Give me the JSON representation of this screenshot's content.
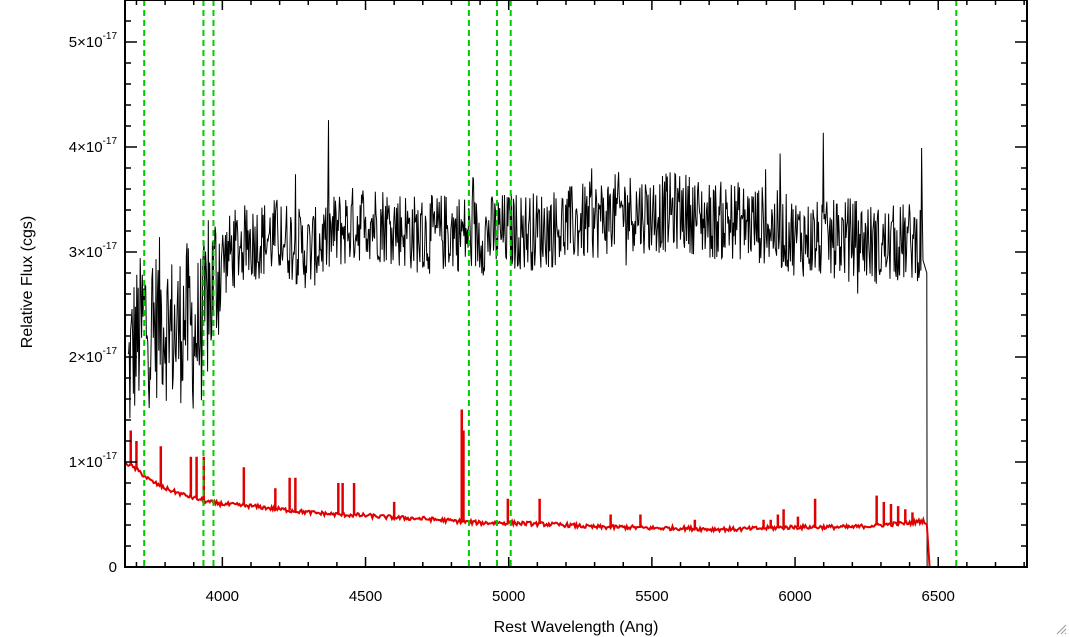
{
  "chart_data": {
    "type": "line",
    "title": "",
    "xlabel": "Rest Wavelength (Ang)",
    "ylabel": "Relative Flux (cgs)",
    "xlim": [
      3660,
      6810
    ],
    "ylim": [
      0,
      5.4e-17
    ],
    "x_ticks": [
      {
        "value": 4000,
        "label": "4000"
      },
      {
        "value": 4500,
        "label": "4500"
      },
      {
        "value": 5000,
        "label": "5000"
      },
      {
        "value": 5500,
        "label": "5500"
      },
      {
        "value": 6000,
        "label": "6000"
      },
      {
        "value": 6500,
        "label": "6500"
      }
    ],
    "y_ticks": [
      {
        "value": 0,
        "mant": "0",
        "exp": ""
      },
      {
        "value": 1e-17,
        "mant": "1×10",
        "exp": "-17"
      },
      {
        "value": 2e-17,
        "mant": "2×10",
        "exp": "-17"
      },
      {
        "value": 3e-17,
        "mant": "3×10",
        "exp": "-17"
      },
      {
        "value": 4e-17,
        "mant": "4×10",
        "exp": "-17"
      },
      {
        "value": 5e-17,
        "mant": "5×10",
        "exp": "-17"
      }
    ],
    "grid": false,
    "series": [
      {
        "color": "#000000",
        "style": "noisy observed spectrum",
        "x": [
          3670,
          3690,
          3710,
          3730,
          3750,
          3780,
          3810,
          3840,
          3870,
          3900,
          3930,
          3960,
          3990,
          4050,
          4100,
          4200,
          4300,
          4400,
          4500,
          4600,
          4700,
          4800,
          4900,
          5000,
          5100,
          5200,
          5300,
          5400,
          5500,
          5600,
          5700,
          5800,
          5900,
          6000,
          6100,
          6200,
          6300,
          6400,
          6450,
          6460,
          6461
        ],
        "values": [
          1.8e-17,
          2.1e-17,
          2.2e-17,
          2.4e-17,
          2.2e-17,
          2.4e-17,
          2.3e-17,
          2.2e-17,
          2.4e-17,
          2.2e-17,
          2.3e-17,
          2.6e-17,
          2.9e-17,
          3.05e-17,
          3.1e-17,
          3.15e-17,
          3e-17,
          3.2e-17,
          3.3e-17,
          3.25e-17,
          3.15e-17,
          3.2e-17,
          3.15e-17,
          3.2e-17,
          3.2e-17,
          3.25e-17,
          3.3e-17,
          3.4e-17,
          3.35e-17,
          3.4e-17,
          3.3e-17,
          3.3e-17,
          3.25e-17,
          3.15e-17,
          3.1e-17,
          3.15e-17,
          3.05e-17,
          3.1e-17,
          3.1e-17,
          2.8e-17,
          0
        ]
      },
      {
        "color": "#e00000",
        "style": "model spectrum with emission lines",
        "x": [
          3660,
          3700,
          3750,
          3800,
          3850,
          3900,
          3950,
          4000,
          4100,
          4200,
          4300,
          4400,
          4500,
          4600,
          4700,
          4800,
          4850,
          4900,
          5000,
          5100,
          5200,
          5300,
          5400,
          5500,
          5600,
          5700,
          5800,
          5900,
          6000,
          6100,
          6200,
          6300,
          6400,
          6450,
          6460,
          6470,
          6810
        ],
        "values": [
          1e-17,
          9.3e-18,
          8.2e-18,
          7.5e-18,
          7e-18,
          6.6e-18,
          6.2e-18,
          6e-18,
          5.8e-18,
          5.5e-18,
          5.2e-18,
          5e-18,
          4.9e-18,
          4.7e-18,
          4.6e-18,
          4.4e-18,
          4.3e-18,
          4.2e-18,
          4.2e-18,
          4.1e-18,
          4e-18,
          3.8e-18,
          3.8e-18,
          3.7e-18,
          3.7e-18,
          3.6e-18,
          3.6e-18,
          3.7e-18,
          3.8e-18,
          3.8e-18,
          3.8e-18,
          4e-18,
          4.2e-18,
          4.4e-18,
          4.1e-18,
          0,
          0
        ]
      }
    ],
    "emission_lines": [
      {
        "x": 3680,
        "height": 1.3e-17
      },
      {
        "x": 3700,
        "height": 1.2e-17
      },
      {
        "x": 3785,
        "height": 1.15e-17
      },
      {
        "x": 3890,
        "height": 1.05e-17
      },
      {
        "x": 3910,
        "height": 1.05e-17
      },
      {
        "x": 3935,
        "height": 1.05e-17
      },
      {
        "x": 4075,
        "height": 9.5e-18
      },
      {
        "x": 4185,
        "height": 7.5e-18
      },
      {
        "x": 4235,
        "height": 8.5e-18
      },
      {
        "x": 4255,
        "height": 8.5e-18
      },
      {
        "x": 4405,
        "height": 8e-18
      },
      {
        "x": 4420,
        "height": 8e-18
      },
      {
        "x": 4460,
        "height": 8e-18
      },
      {
        "x": 4600,
        "height": 6.2e-18
      },
      {
        "x": 4836,
        "height": 1.5e-17
      },
      {
        "x": 4842,
        "height": 1.3e-17
      },
      {
        "x": 4997,
        "height": 6.5e-18
      },
      {
        "x": 5108,
        "height": 6.5e-18
      },
      {
        "x": 5356,
        "height": 5e-18
      },
      {
        "x": 5460,
        "height": 5e-18
      },
      {
        "x": 5650,
        "height": 4.5e-18
      },
      {
        "x": 5890,
        "height": 4.5e-18
      },
      {
        "x": 5915,
        "height": 4.5e-18
      },
      {
        "x": 5940,
        "height": 5e-18
      },
      {
        "x": 5960,
        "height": 5.5e-18
      },
      {
        "x": 6010,
        "height": 4.8e-18
      },
      {
        "x": 6070,
        "height": 6.5e-18
      },
      {
        "x": 6285,
        "height": 6.8e-18
      },
      {
        "x": 6310,
        "height": 6.2e-18
      },
      {
        "x": 6335,
        "height": 6e-18
      },
      {
        "x": 6360,
        "height": 5.8e-18
      },
      {
        "x": 6385,
        "height": 5.5e-18
      },
      {
        "x": 6410,
        "height": 5.2e-18
      }
    ],
    "reference_lines": {
      "color": "#00cc00",
      "style": "dashed",
      "x": [
        3727,
        3934,
        3969,
        4861,
        4959,
        5007,
        6563
      ]
    }
  }
}
